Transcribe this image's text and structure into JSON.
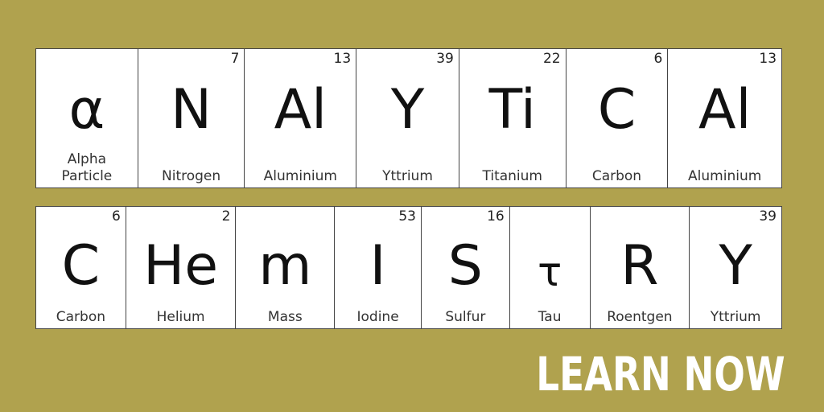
{
  "row1": [
    {
      "number": "",
      "symbol": "α",
      "name": "Alpha\nParticle"
    },
    {
      "number": "7",
      "symbol": "N",
      "name": "Nitrogen"
    },
    {
      "number": "13",
      "symbol": "Al",
      "name": "Aluminium"
    },
    {
      "number": "39",
      "symbol": "Y",
      "name": "Yttrium"
    },
    {
      "number": "22",
      "symbol": "Ti",
      "name": "Titanium"
    },
    {
      "number": "6",
      "symbol": "C",
      "name": "Carbon"
    },
    {
      "number": "13",
      "symbol": "Al",
      "name": "Aluminium"
    }
  ],
  "row2": [
    {
      "number": "6",
      "symbol": "C",
      "name": "Carbon"
    },
    {
      "number": "2",
      "symbol": "He",
      "name": "Helium"
    },
    {
      "number": "",
      "symbol": "m",
      "name": "Mass"
    },
    {
      "number": "53",
      "symbol": "I",
      "name": "Iodine"
    },
    {
      "number": "16",
      "symbol": "S",
      "name": "Sulfur"
    },
    {
      "number": "",
      "symbol": "τ",
      "name": "Tau"
    },
    {
      "number": "",
      "symbol": "R",
      "name": "Roentgen"
    },
    {
      "number": "39",
      "symbol": "Y",
      "name": "Yttrium"
    }
  ],
  "cta": {
    "label": "LEARN NOW"
  },
  "colors": {
    "background": "#b0a24e",
    "tile": "#ffffff",
    "text": "#111111"
  }
}
